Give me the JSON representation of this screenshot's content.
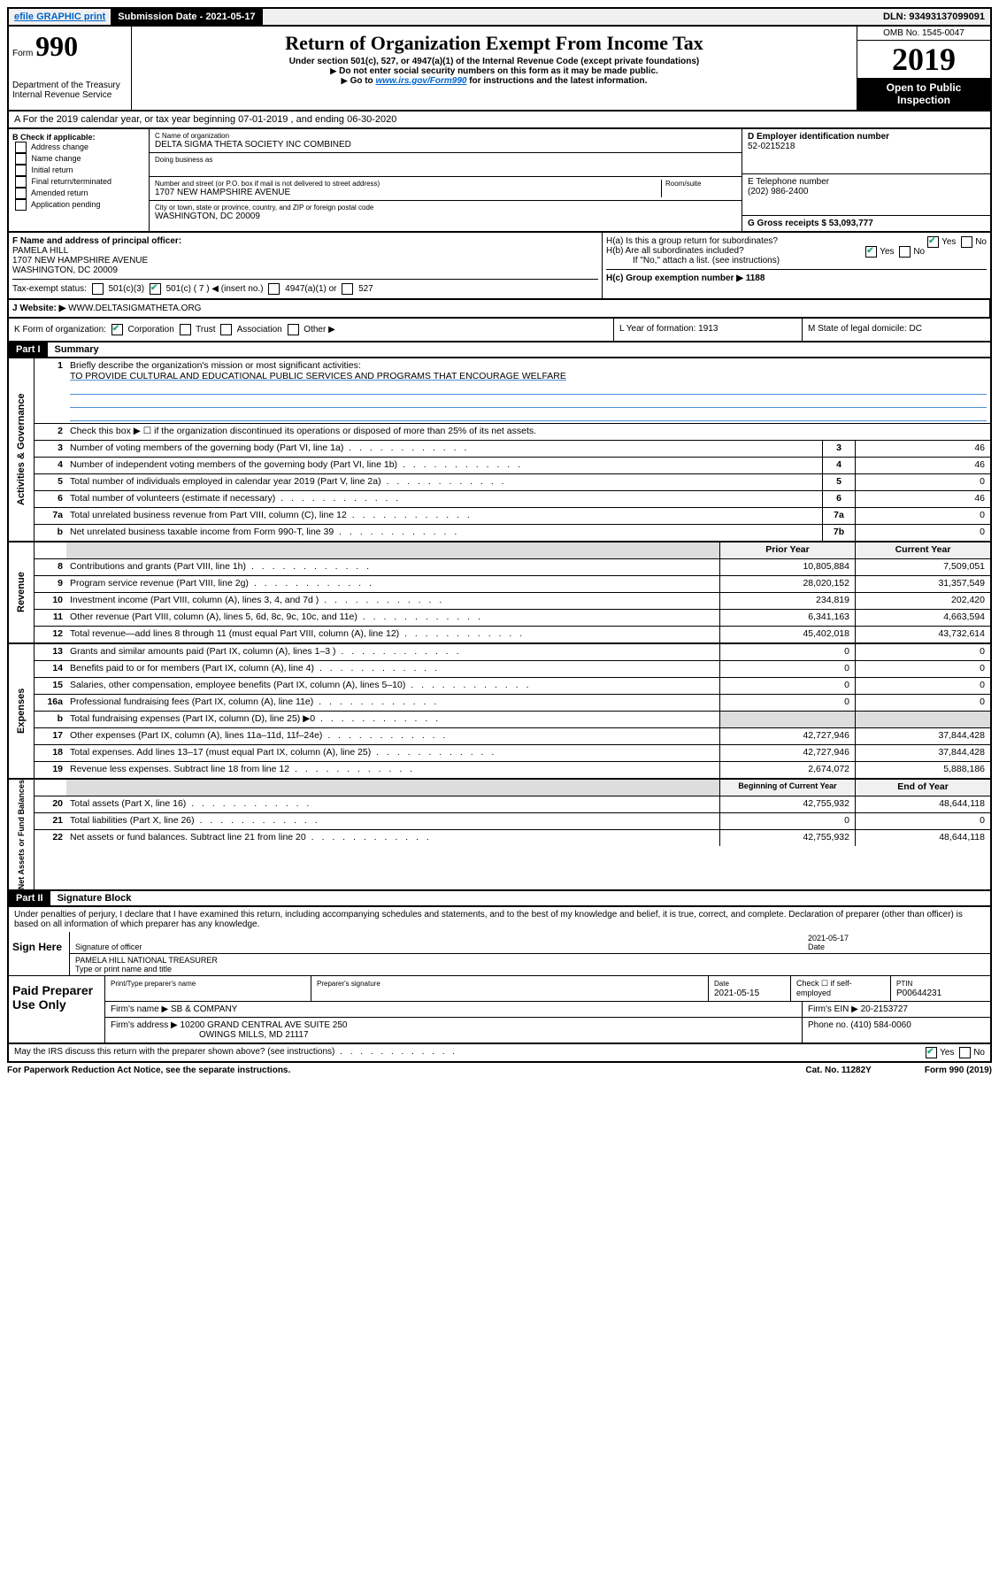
{
  "top": {
    "efile": "efile GRAPHIC print",
    "submission_label": "Submission Date - 2021-05-17",
    "dln": "DLN: 93493137099091"
  },
  "header": {
    "form_label": "Form",
    "form_number": "990",
    "dept": "Department of the Treasury\nInternal Revenue Service",
    "title": "Return of Organization Exempt From Income Tax",
    "sub1": "Under section 501(c), 527, or 4947(a)(1) of the Internal Revenue Code (except private foundations)",
    "sub2": "Do not enter social security numbers on this form as it may be made public.",
    "sub3_pre": "Go to ",
    "sub3_link": "www.irs.gov/Form990",
    "sub3_post": " for instructions and the latest information.",
    "omb": "OMB No. 1545-0047",
    "year": "2019",
    "open": "Open to Public Inspection"
  },
  "row_a": {
    "text": "A For the 2019 calendar year, or tax year beginning 07-01-2019    , and ending 06-30-2020"
  },
  "col_b": {
    "label": "B Check if applicable:",
    "opts": [
      "Address change",
      "Name change",
      "Initial return",
      "Final return/terminated",
      "Amended return",
      "Application pending"
    ]
  },
  "col_c": {
    "name_label": "C Name of organization",
    "name": "DELTA SIGMA THETA SOCIETY INC COMBINED",
    "dba_label": "Doing business as",
    "street_label": "Number and street (or P.O. box if mail is not delivered to street address)",
    "room_label": "Room/suite",
    "street": "1707 NEW HAMPSHIRE AVENUE",
    "city_label": "City or town, state or province, country, and ZIP or foreign postal code",
    "city": "WASHINGTON, DC  20009"
  },
  "col_d": {
    "label": "D Employer identification number",
    "value": "52-0215218"
  },
  "col_e": {
    "label": "E Telephone number",
    "value": "(202) 986-2400"
  },
  "col_g": {
    "label": "G Gross receipts $ 53,093,777"
  },
  "col_f": {
    "label": "F  Name and address of principal officer:",
    "name": "PAMELA HILL",
    "addr1": "1707 NEW HAMPSHIRE AVENUE",
    "addr2": "WASHINGTON, DC  20009"
  },
  "col_h": {
    "ha": "H(a)  Is this a group return for subordinates?",
    "hb": "H(b)  Are all subordinates included?",
    "hb_note": "If \"No,\" attach a list. (see instructions)",
    "hc": "H(c)  Group exemption number ▶   1188"
  },
  "tax_status": {
    "label": "Tax-exempt status:",
    "c3": "501(c)(3)",
    "c": "501(c) ( 7 ) ◀ (insert no.)",
    "a1": "4947(a)(1) or",
    "s527": "527"
  },
  "website": {
    "label": "J    Website: ▶",
    "value": "WWW.DELTASIGMATHETA.ORG"
  },
  "row_k": {
    "label": "K Form of organization:",
    "corp": "Corporation",
    "trust": "Trust",
    "assoc": "Association",
    "other": "Other ▶"
  },
  "row_l": "L Year of formation: 1913",
  "row_m": "M State of legal domicile: DC",
  "part1": {
    "hdr": "Part I",
    "title": "Summary"
  },
  "summary": {
    "q1": "Briefly describe the organization's mission or most significant activities:",
    "q1v": "TO PROVIDE CULTURAL AND EDUCATIONAL PUBLIC SERVICES AND PROGRAMS THAT ENCOURAGE WELFARE",
    "q2": "Check this box ▶ ☐  if the organization discontinued its operations or disposed of more than 25% of its net assets.",
    "lines": [
      {
        "n": "3",
        "d": "Number of voting members of the governing body (Part VI, line 1a)",
        "b": "3",
        "v": "46"
      },
      {
        "n": "4",
        "d": "Number of independent voting members of the governing body (Part VI, line 1b)",
        "b": "4",
        "v": "46"
      },
      {
        "n": "5",
        "d": "Total number of individuals employed in calendar year 2019 (Part V, line 2a)",
        "b": "5",
        "v": "0"
      },
      {
        "n": "6",
        "d": "Total number of volunteers (estimate if necessary)",
        "b": "6",
        "v": "46"
      },
      {
        "n": "7a",
        "d": "Total unrelated business revenue from Part VIII, column (C), line 12",
        "b": "7a",
        "v": "0"
      },
      {
        "n": "b",
        "d": "Net unrelated business taxable income from Form 990-T, line 39",
        "b": "7b",
        "v": "0"
      }
    ],
    "col_hdr_prior": "Prior Year",
    "col_hdr_curr": "Current Year",
    "revenue": [
      {
        "n": "8",
        "d": "Contributions and grants (Part VIII, line 1h)",
        "p": "10,805,884",
        "c": "7,509,051"
      },
      {
        "n": "9",
        "d": "Program service revenue (Part VIII, line 2g)",
        "p": "28,020,152",
        "c": "31,357,549"
      },
      {
        "n": "10",
        "d": "Investment income (Part VIII, column (A), lines 3, 4, and 7d )",
        "p": "234,819",
        "c": "202,420"
      },
      {
        "n": "11",
        "d": "Other revenue (Part VIII, column (A), lines 5, 6d, 8c, 9c, 10c, and 11e)",
        "p": "6,341,163",
        "c": "4,663,594"
      },
      {
        "n": "12",
        "d": "Total revenue—add lines 8 through 11 (must equal Part VIII, column (A), line 12)",
        "p": "45,402,018",
        "c": "43,732,614"
      }
    ],
    "expenses": [
      {
        "n": "13",
        "d": "Grants and similar amounts paid (Part IX, column (A), lines 1–3 )",
        "p": "0",
        "c": "0"
      },
      {
        "n": "14",
        "d": "Benefits paid to or for members (Part IX, column (A), line 4)",
        "p": "0",
        "c": "0"
      },
      {
        "n": "15",
        "d": "Salaries, other compensation, employee benefits (Part IX, column (A), lines 5–10)",
        "p": "0",
        "c": "0"
      },
      {
        "n": "16a",
        "d": "Professional fundraising fees (Part IX, column (A), line 11e)",
        "p": "0",
        "c": "0"
      },
      {
        "n": "b",
        "d": "Total fundraising expenses (Part IX, column (D), line 25) ▶0",
        "p": "",
        "c": "",
        "shade": true
      },
      {
        "n": "17",
        "d": "Other expenses (Part IX, column (A), lines 11a–11d, 11f–24e)",
        "p": "42,727,946",
        "c": "37,844,428"
      },
      {
        "n": "18",
        "d": "Total expenses. Add lines 13–17 (must equal Part IX, column (A), line 25)",
        "p": "42,727,946",
        "c": "37,844,428"
      },
      {
        "n": "19",
        "d": "Revenue less expenses. Subtract line 18 from line 12",
        "p": "2,674,072",
        "c": "5,888,186"
      }
    ],
    "col_hdr_beg": "Beginning of Current Year",
    "col_hdr_end": "End of Year",
    "netassets": [
      {
        "n": "20",
        "d": "Total assets (Part X, line 16)",
        "p": "42,755,932",
        "c": "48,644,118"
      },
      {
        "n": "21",
        "d": "Total liabilities (Part X, line 26)",
        "p": "0",
        "c": "0"
      },
      {
        "n": "22",
        "d": "Net assets or fund balances. Subtract line 21 from line 20",
        "p": "42,755,932",
        "c": "48,644,118"
      }
    ]
  },
  "part2": {
    "hdr": "Part II",
    "title": "Signature Block"
  },
  "perjury": "Under penalties of perjury, I declare that I have examined this return, including accompanying schedules and statements, and to the best of my knowledge and belief, it is true, correct, and complete. Declaration of preparer (other than officer) is based on all information of which preparer has any knowledge.",
  "sign": {
    "here": "Sign Here",
    "sig_officer": "Signature of officer",
    "date": "2021-05-17",
    "date_label": "Date",
    "name": "PAMELA HILL  NATIONAL TREASURER",
    "name_label": "Type or print name and title"
  },
  "paid": {
    "label": "Paid Preparer Use Only",
    "h1": "Print/Type preparer's name",
    "h2": "Preparer's signature",
    "h3": "Date",
    "h3v": "2021-05-15",
    "h4": "Check ☐ if self-employed",
    "h5": "PTIN",
    "h5v": "P00644231",
    "firm_label": "Firm's name    ▶",
    "firm": "SB & COMPANY",
    "ein_label": "Firm's EIN ▶",
    "ein": "20-2153727",
    "addr_label": "Firm's address  ▶",
    "addr": "10200 GRAND CENTRAL AVE SUITE 250",
    "addr2": "OWINGS MILLS, MD  21117",
    "phone_label": "Phone no.",
    "phone": "(410) 584-0060"
  },
  "discuss": "May the IRS discuss this return with the preparer shown above? (see instructions)",
  "footer": {
    "pra": "For Paperwork Reduction Act Notice, see the separate instructions.",
    "cat": "Cat. No. 11282Y",
    "form": "Form 990 (2019)"
  }
}
